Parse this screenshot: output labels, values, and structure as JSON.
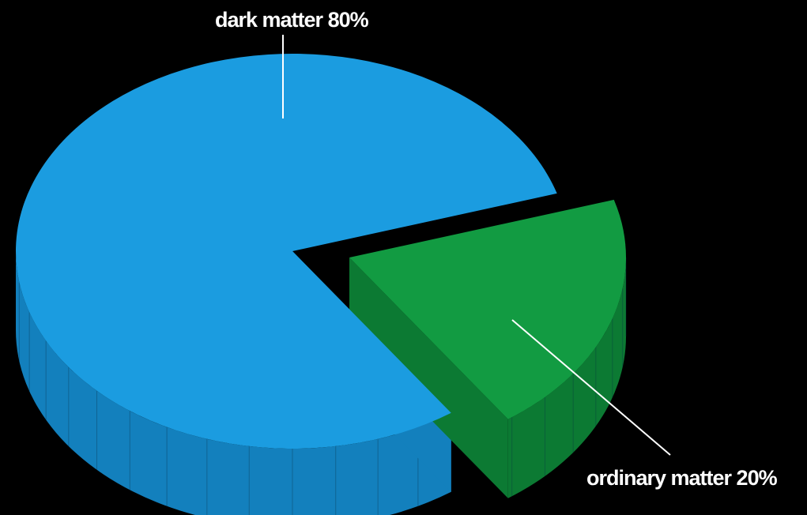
{
  "chart_data": {
    "type": "pie",
    "title": "",
    "slices": [
      {
        "label": "dark matter 80%",
        "value": 80,
        "color": "#1b9ce0",
        "side_color": "#1380bd"
      },
      {
        "label": "ordinary matter 20%",
        "value": 20,
        "color": "#129b42",
        "side_color": "#0c7a33"
      }
    ],
    "legend": "none",
    "style": "3d-exploded"
  }
}
